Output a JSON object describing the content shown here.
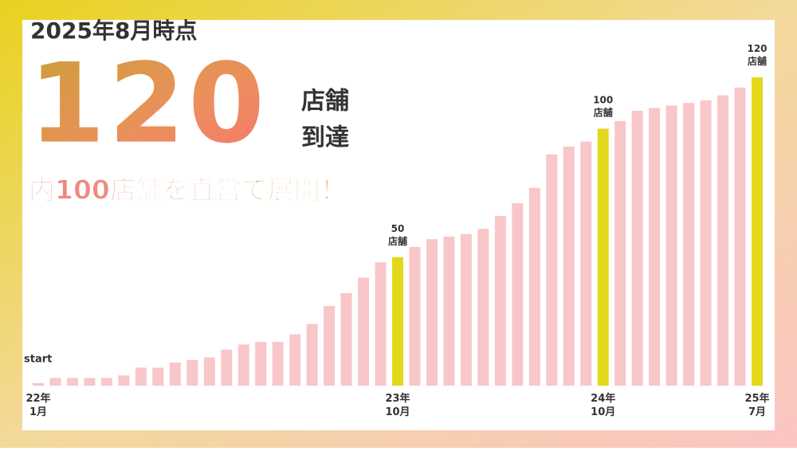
{
  "chart_data": {
    "type": "bar",
    "header": "2025年8月時点",
    "headline_number": "120",
    "headline_unit": [
      "店舗",
      "到達"
    ],
    "subtitle": "内100店舗を直営で展開！",
    "annotation": "start",
    "categories": [
      "22年\n1月",
      null,
      null,
      null,
      null,
      null,
      null,
      null,
      null,
      null,
      null,
      null,
      null,
      null,
      null,
      null,
      null,
      null,
      null,
      null,
      null,
      "23年\n10月",
      null,
      null,
      null,
      null,
      null,
      null,
      null,
      null,
      null,
      null,
      null,
      "24年\n10月",
      null,
      null,
      null,
      null,
      null,
      null,
      null,
      null,
      "25年\n7月"
    ],
    "values": [
      1,
      3,
      3,
      3,
      3,
      4,
      7,
      7,
      9,
      10,
      11,
      14,
      16,
      17,
      17,
      20,
      24,
      31,
      36,
      42,
      48,
      50,
      54,
      57,
      58,
      59,
      61,
      66,
      71,
      77,
      90,
      93,
      95,
      100,
      103,
      107,
      108,
      109,
      110,
      111,
      113,
      116,
      120
    ],
    "value_labels": [
      null,
      null,
      null,
      null,
      null,
      null,
      null,
      null,
      null,
      null,
      null,
      null,
      null,
      null,
      null,
      null,
      null,
      null,
      null,
      null,
      null,
      "50\n店舗",
      null,
      null,
      null,
      null,
      null,
      null,
      null,
      null,
      null,
      null,
      null,
      "100\n店舗",
      null,
      null,
      null,
      null,
      null,
      null,
      null,
      null,
      "120\n店舗"
    ],
    "color": "#f9c6c9",
    "highlight_color": "#e3d81c",
    "ylim": [
      0,
      120
    ]
  }
}
